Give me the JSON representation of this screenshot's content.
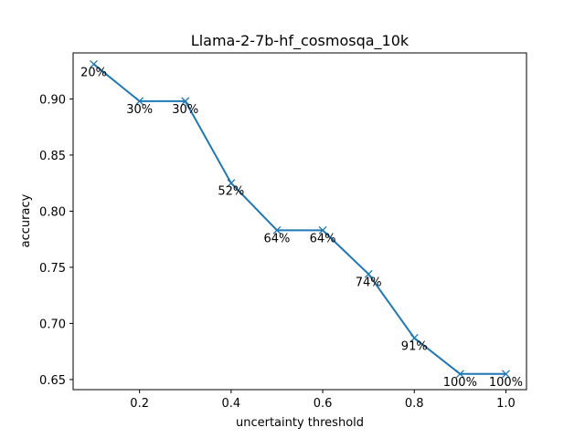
{
  "chart_data": {
    "type": "line",
    "title": "Llama-2-7b-hf_cosmosqa_10k",
    "xlabel": "uncertainty threshold",
    "ylabel": "accuracy",
    "xlim": [
      0.055,
      1.045
    ],
    "ylim": [
      0.641,
      0.941
    ],
    "x_ticks": [
      0.2,
      0.4,
      0.6,
      0.8,
      1.0
    ],
    "x_tick_labels": [
      "0.2",
      "0.4",
      "0.6",
      "0.8",
      "1.0"
    ],
    "y_ticks": [
      0.65,
      0.7,
      0.75,
      0.8,
      0.85,
      0.9
    ],
    "y_tick_labels": [
      "0.65",
      "0.70",
      "0.75",
      "0.80",
      "0.85",
      "0.90"
    ],
    "grid": false,
    "marker": "x",
    "color": "#1f77b4",
    "series": [
      {
        "x": [
          0.1,
          0.2,
          0.3,
          0.4,
          0.5,
          0.6,
          0.7,
          0.8,
          0.9,
          1.0
        ],
        "values": [
          0.931,
          0.898,
          0.898,
          0.825,
          0.783,
          0.783,
          0.744,
          0.687,
          0.655,
          0.655
        ],
        "labels": [
          "20%",
          "30%",
          "30%",
          "52%",
          "64%",
          "64%",
          "74%",
          "91%",
          "100%",
          "100%"
        ]
      }
    ]
  }
}
